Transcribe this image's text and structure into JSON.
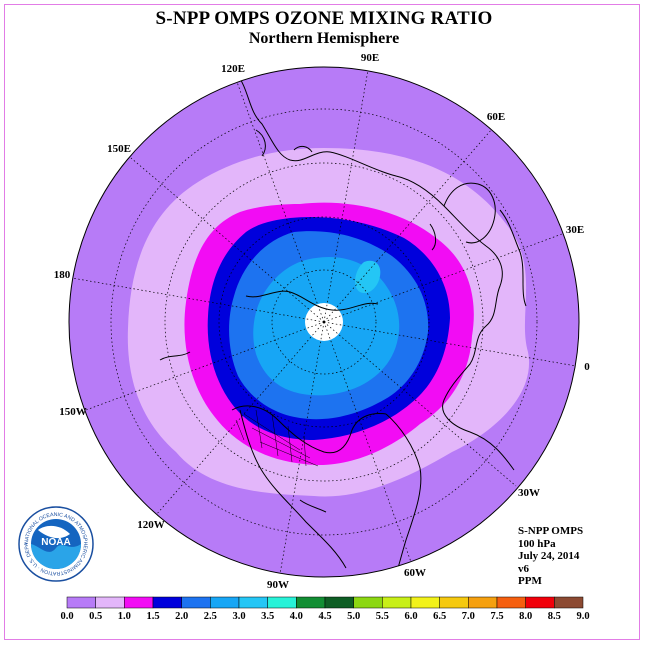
{
  "title": "S-NPP OMPS OZONE MIXING RATIO",
  "subtitle": "Northern Hemisphere",
  "longitude_labels": [
    "90E",
    "60E",
    "30E",
    "0",
    "30W",
    "60W",
    "90W",
    "120W",
    "150W",
    "180",
    "150E",
    "120E"
  ],
  "info": {
    "instrument": "S-NPP OMPS",
    "level": "100 hPa",
    "date": "July 24, 2014",
    "version": "v6",
    "units": "PPM"
  },
  "logo": {
    "text": "NOAA",
    "ring_text": "NATIONAL OCEANIC AND ATMOSPHERIC ADMINISTRATION · U.S. DEPARTMENT OF COMMERCE"
  },
  "colorbar": {
    "ticks": [
      "0.0",
      "0.5",
      "1.0",
      "1.5",
      "2.0",
      "2.5",
      "3.0",
      "3.5",
      "4.0",
      "4.5",
      "5.0",
      "5.5",
      "6.0",
      "6.5",
      "7.0",
      "7.5",
      "8.0",
      "8.5",
      "9.0"
    ],
    "colors": [
      "#b77bf7",
      "#e3b6fa",
      "#f20cf4",
      "#0000dc",
      "#1d73f0",
      "#17a6f5",
      "#24c6f5",
      "#27f2d8",
      "#128e33",
      "#0e5e24",
      "#8cd712",
      "#c8ef18",
      "#f2f21a",
      "#f5c90f",
      "#f5a00f",
      "#f55f0f",
      "#f0000a",
      "#8c4a32"
    ]
  }
}
